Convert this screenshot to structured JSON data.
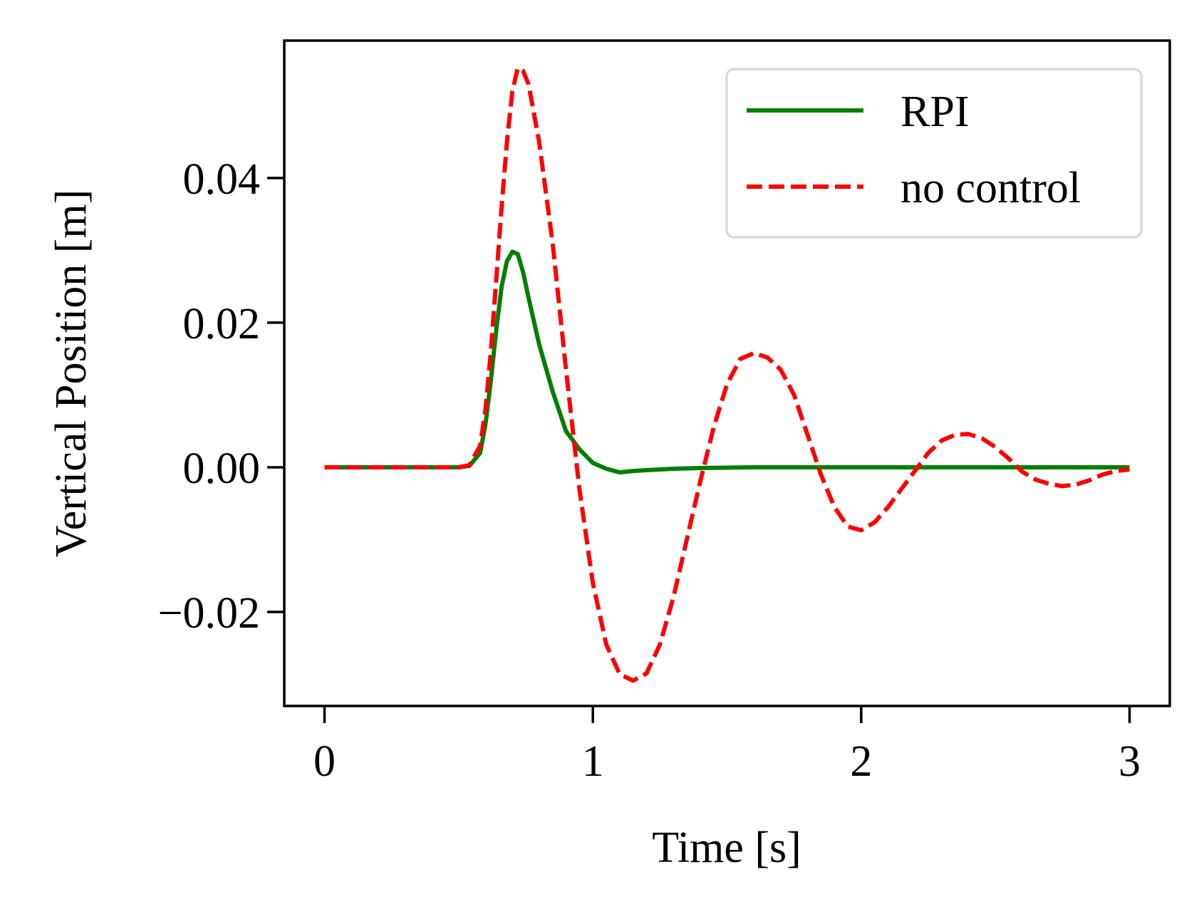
{
  "chart_data": {
    "type": "line",
    "title": "",
    "xlabel": "Time [s]",
    "ylabel": "Vertical Position [m]",
    "xlim": [
      -0.15,
      3.15
    ],
    "ylim": [
      -0.033,
      0.059
    ],
    "xticks": [
      0,
      1,
      2,
      3
    ],
    "xtick_labels": [
      "0",
      "1",
      "2",
      "3"
    ],
    "yticks": [
      -0.02,
      0.0,
      0.02,
      0.04
    ],
    "ytick_labels": [
      "−0.02",
      "0.00",
      "0.02",
      "0.04"
    ],
    "grid": false,
    "legend": {
      "position": "top-right"
    },
    "series": [
      {
        "name": "RPI",
        "color": "#008000",
        "style": "solid",
        "x": [
          0,
          0.2,
          0.4,
          0.5,
          0.54,
          0.58,
          0.6,
          0.62,
          0.64,
          0.66,
          0.68,
          0.7,
          0.72,
          0.74,
          0.76,
          0.8,
          0.85,
          0.9,
          0.95,
          1.0,
          1.05,
          1.1,
          1.15,
          1.2,
          1.3,
          1.4,
          1.6,
          2.0,
          2.5,
          3.0
        ],
        "y": [
          0,
          0,
          0,
          0,
          0.0002,
          0.002,
          0.006,
          0.012,
          0.019,
          0.025,
          0.0285,
          0.0298,
          0.0295,
          0.027,
          0.0235,
          0.017,
          0.0105,
          0.005,
          0.0025,
          0.0006,
          -0.0002,
          -0.0007,
          -0.0005,
          -0.0004,
          -0.0002,
          -0.0001,
          0,
          0,
          0,
          0
        ]
      },
      {
        "name": "no control",
        "color": "#ff0000",
        "style": "dashed",
        "x": [
          0,
          0.2,
          0.4,
          0.5,
          0.54,
          0.58,
          0.6,
          0.62,
          0.64,
          0.66,
          0.68,
          0.7,
          0.72,
          0.74,
          0.76,
          0.8,
          0.85,
          0.9,
          0.95,
          1.0,
          1.05,
          1.1,
          1.15,
          1.2,
          1.25,
          1.3,
          1.35,
          1.4,
          1.45,
          1.5,
          1.55,
          1.6,
          1.65,
          1.7,
          1.75,
          1.8,
          1.85,
          1.9,
          1.95,
          2.0,
          2.05,
          2.1,
          2.15,
          2.2,
          2.25,
          2.3,
          2.35,
          2.4,
          2.45,
          2.5,
          2.55,
          2.6,
          2.65,
          2.7,
          2.75,
          2.8,
          2.85,
          2.9,
          2.95,
          3.0
        ],
        "y": [
          0,
          0,
          0,
          0,
          0.0003,
          0.003,
          0.008,
          0.016,
          0.026,
          0.036,
          0.045,
          0.052,
          0.0552,
          0.0548,
          0.053,
          0.045,
          0.031,
          0.0135,
          -0.003,
          -0.016,
          -0.0245,
          -0.0286,
          -0.0295,
          -0.0285,
          -0.0245,
          -0.018,
          -0.01,
          -0.002,
          0.0055,
          0.0115,
          0.015,
          0.0158,
          0.0152,
          0.0135,
          0.01,
          0.0045,
          -0.001,
          -0.0055,
          -0.0082,
          -0.0087,
          -0.0076,
          -0.0055,
          -0.003,
          -0.0005,
          0.002,
          0.0037,
          0.0045,
          0.0046,
          0.004,
          0.0028,
          0.0012,
          -0.0006,
          -0.0017,
          -0.0023,
          -0.0026,
          -0.0024,
          -0.0018,
          -0.001,
          -0.0005,
          -0.0003
        ]
      }
    ]
  }
}
